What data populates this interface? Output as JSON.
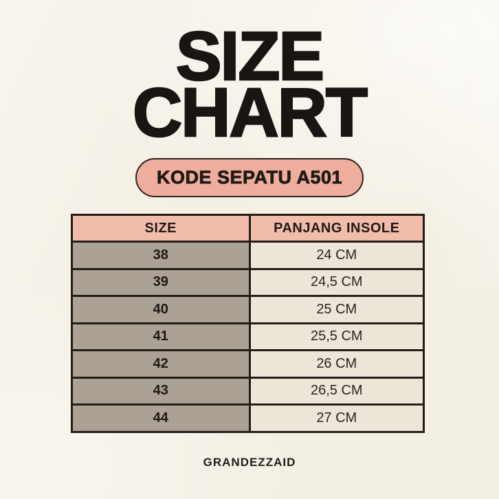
{
  "page": {
    "title": {
      "line1": "SIZE",
      "line2": "CHART"
    },
    "badge_label": "KODE SEPATU A501",
    "brand": "GRANDEZZAID"
  },
  "chart_data": {
    "type": "table",
    "title": "SIZE CHART",
    "subtitle": "KODE SEPATU A501",
    "columns": [
      "SIZE",
      "PANJANG INSOLE"
    ],
    "rows": [
      [
        "38",
        "24 CM"
      ],
      [
        "39",
        "24,5 CM"
      ],
      [
        "40",
        "25 CM"
      ],
      [
        "41",
        "25,5 CM"
      ],
      [
        "42",
        "26 CM"
      ],
      [
        "43",
        "26,5 CM"
      ],
      [
        "44",
        "27 CM"
      ]
    ]
  },
  "colors": {
    "bg": "#f4efe4",
    "bg-light": "#fbf9f4",
    "ink": "#1a1512",
    "salmon": "#efae9d",
    "header-pink": "#f2bcab",
    "taupe": "#aba195",
    "cream-cell": "#ece5d8",
    "border": "#231d18"
  }
}
